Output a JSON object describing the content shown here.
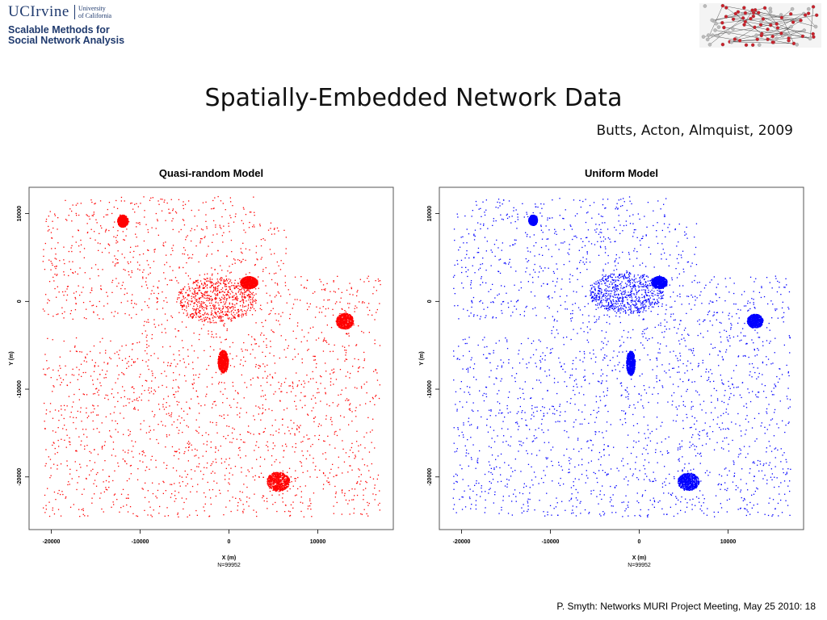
{
  "header": {
    "logo_uci": "UCIrvine",
    "logo_uc_line1": "University",
    "logo_uc_line2": "of California",
    "logo_line1": "Scalable Methods for",
    "logo_line2": "Social Network Analysis"
  },
  "title": "Spatially-Embedded Network Data",
  "authors": "Butts, Acton, Almquist, 2009",
  "footer": "P.  Smyth: Networks MURI Project Meeting, May 25 2010: 18",
  "chart_data": [
    {
      "type": "scatter",
      "title": "Quasi-random Model",
      "xlabel": "X (m)",
      "ylabel": "Y (m)",
      "annotation": "N=99952",
      "color": "#ff0000",
      "xlim": [
        -22500,
        18500
      ],
      "ylim": [
        -26000,
        13000
      ],
      "xticks": [
        -20000,
        -10000,
        0,
        10000
      ],
      "yticks": [
        10000,
        0,
        -10000,
        -20000
      ],
      "grid": false,
      "clusters": [
        {
          "x": -1500,
          "y": 200,
          "rx": 4500,
          "ry": 2600
        },
        {
          "x": 2200,
          "y": 2200,
          "rx": 1000,
          "ry": 700
        },
        {
          "x": -12000,
          "y": 9200,
          "rx": 600,
          "ry": 700
        },
        {
          "x": 13000,
          "y": -2200,
          "rx": 1000,
          "ry": 900
        },
        {
          "x": 5500,
          "y": -20500,
          "rx": 1300,
          "ry": 1100
        },
        {
          "x": -700,
          "y": -6800,
          "rx": 600,
          "ry": 1300
        }
      ]
    },
    {
      "type": "scatter",
      "title": "Uniform Model",
      "xlabel": "X (m)",
      "ylabel": "Y (m)",
      "annotation": "N=99952",
      "color": "#0000ff",
      "xlim": [
        -22500,
        18500
      ],
      "ylim": [
        -26000,
        13000
      ],
      "xticks": [
        -20000,
        -10000,
        0,
        10000
      ],
      "yticks": [
        10000,
        0,
        -10000,
        -20000
      ],
      "grid": false,
      "clusters": [
        {
          "x": -1500,
          "y": 1000,
          "rx": 4200,
          "ry": 2400
        },
        {
          "x": 2200,
          "y": 2200,
          "rx": 900,
          "ry": 700
        },
        {
          "x": -12000,
          "y": 9300,
          "rx": 500,
          "ry": 600
        },
        {
          "x": 13000,
          "y": -2200,
          "rx": 900,
          "ry": 800
        },
        {
          "x": 5500,
          "y": -20500,
          "rx": 1200,
          "ry": 1000
        },
        {
          "x": -1000,
          "y": -7000,
          "rx": 500,
          "ry": 1400
        }
      ]
    }
  ]
}
